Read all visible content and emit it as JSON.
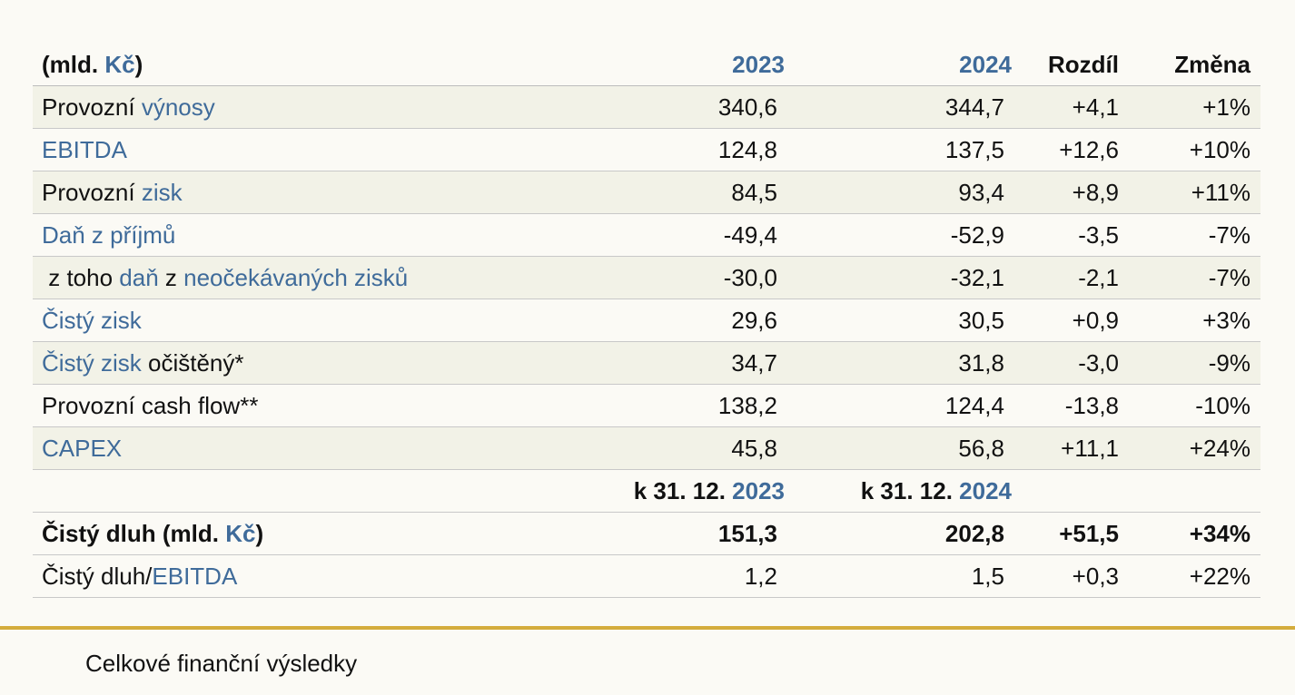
{
  "header": {
    "label_a": "(mld. ",
    "label_b": "Kč",
    "label_c": ")",
    "y2023": "2023",
    "y2024": "2024",
    "diff": "Rozdíl",
    "change": "Změna"
  },
  "rows": [
    {
      "l1": "Provozní ",
      "l2": "výnosy",
      "v2023": "340,6",
      "v2024": "344,7",
      "diff": "+4,1",
      "change": "+1%"
    },
    {
      "l2": "EBITDA",
      "v2023": "124,8",
      "v2024": "137,5",
      "diff": "+12,6",
      "change": "+10%"
    },
    {
      "l1": "Provozní ",
      "l2": "zisk",
      "v2023": "84,5",
      "v2024": "93,4",
      "diff": "+8,9",
      "change": "+11%"
    },
    {
      "l2": "Daň z příjmů",
      "v2023": "-49,4",
      "v2024": "-52,9",
      "diff": "-3,5",
      "change": "-7%"
    },
    {
      "l1": " z toho ",
      "l2": "daň",
      "l3": " z ",
      "l4": "neočekávaných zisků",
      "v2023": "-30,0",
      "v2024": "-32,1",
      "diff": "-2,1",
      "change": "-7%"
    },
    {
      "l2": "Čistý zisk",
      "v2023": "29,6",
      "v2024": "30,5",
      "diff": "+0,9",
      "change": "+3%"
    },
    {
      "l2": "Čistý zisk",
      "l3": " očištěný*",
      "v2023": "34,7",
      "v2024": "31,8",
      "diff": "-3,0",
      "change": "-9%"
    },
    {
      "l1": "Provozní cash flow**",
      "v2023": "138,2",
      "v2024": "124,4",
      "diff": "-13,8",
      "change": "-10%"
    },
    {
      "l2": "CAPEX",
      "v2023": "45,8",
      "v2024": "56,8",
      "diff": "+11,1",
      "change": "+24%"
    }
  ],
  "subheader": {
    "prefix": "k 31. 12. ",
    "y2023": "2023",
    "y2024": "2024"
  },
  "debt": {
    "label_a": "Čistý dluh (mld. ",
    "label_b": "Kč",
    "label_c": ")",
    "v2023": "151,3",
    "v2024": "202,8",
    "diff": "+51,5",
    "change": "+34%"
  },
  "ratio": {
    "label_a": "Čistý dluh/",
    "label_b": "EBITDA",
    "v2023": "1,2",
    "v2024": "1,5",
    "diff": "+0,3",
    "change": "+22%"
  },
  "caption": "Celkové finanční výsledky",
  "colors": {
    "link": "#3f6b9a",
    "accent": "#d4ac3c",
    "shade": "#f2f2e7"
  }
}
